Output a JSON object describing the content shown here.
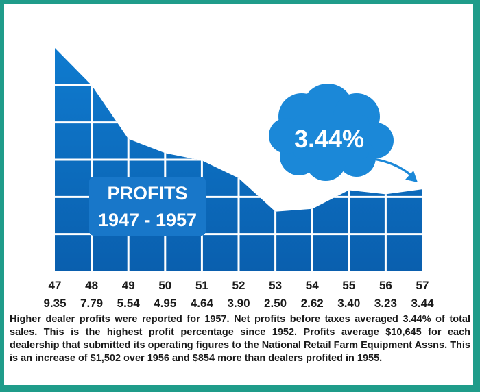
{
  "chart_data": {
    "type": "area",
    "title": "PROFITS",
    "subtitle": "1947 - 1957",
    "x": [
      "47",
      "48",
      "49",
      "50",
      "51",
      "52",
      "53",
      "54",
      "55",
      "56",
      "57"
    ],
    "values": [
      9.35,
      7.79,
      5.54,
      4.95,
      4.64,
      3.9,
      2.5,
      2.62,
      3.4,
      3.23,
      3.44
    ],
    "value_labels": [
      "9.35",
      "7.79",
      "5.54",
      "4.95",
      "4.64",
      "3.90",
      "2.50",
      "2.62",
      "3.40",
      "3.23",
      "3.44"
    ],
    "callout": "3.44%",
    "grid": true,
    "colors": {
      "area_top": "#0f7bcf",
      "area_bottom": "#0a5fae",
      "grid": "#ffffff",
      "callout": "#1b88d8",
      "frame": "#1f9c8a",
      "text": "#1a1a1a"
    }
  },
  "caption": "Higher dealer profits were reported for 1957. Net profits before taxes averaged 3.44% of total sales. This is the highest profit percentage since 1952. Profits average $10,645 for each dealership that submitted its operating figures to the National Retail Farm Equipment Assns. This is an increase of $1,502 over 1956 and $854 more than dealers profited in 1955."
}
